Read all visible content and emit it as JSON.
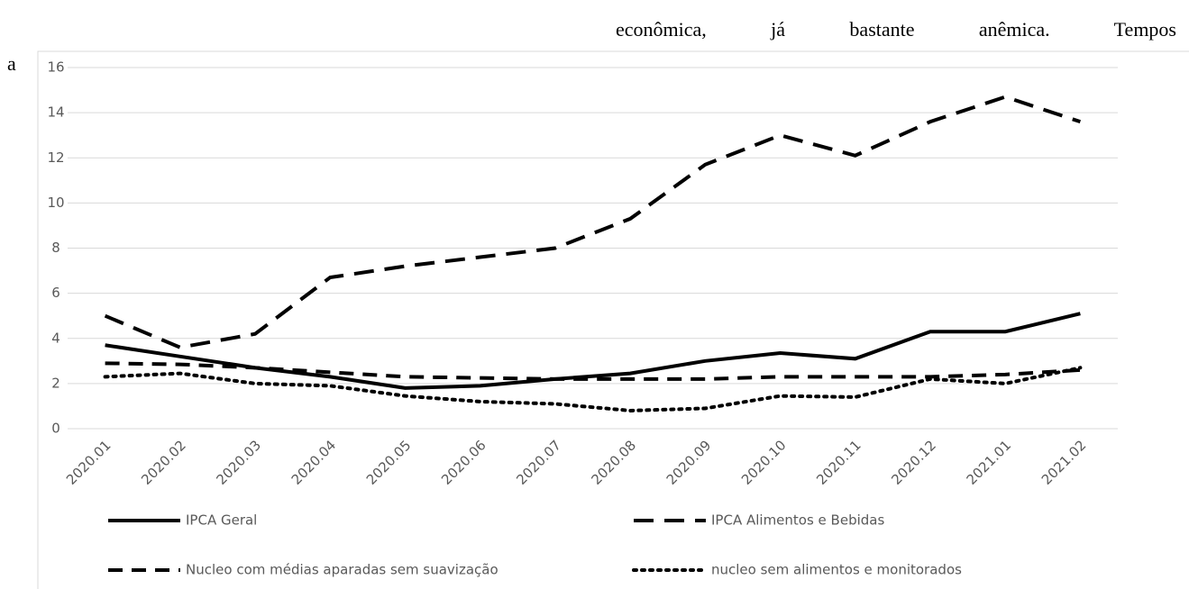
{
  "document": {
    "top_line": "econômica, já bastante anêmica. Tempos",
    "left_fragment": "a"
  },
  "chart_data": {
    "type": "line",
    "categories": [
      "2020.01",
      "2020.02",
      "2020.03",
      "2020.04",
      "2020.05",
      "2020.06",
      "2020.07",
      "2020.08",
      "2020.09",
      "2020.10",
      "2020.11",
      "2020.12",
      "2021.01",
      "2021.02"
    ],
    "series": [
      {
        "name": "IPCA Geral",
        "color": "#000000",
        "dash": "solid",
        "values": [
          3.7,
          3.2,
          2.7,
          2.3,
          1.8,
          1.9,
          2.2,
          2.45,
          3.0,
          3.35,
          3.1,
          4.3,
          4.3,
          5.1
        ]
      },
      {
        "name": "IPCA Alimentos e Bebidas",
        "color": "#000000",
        "dash": "long-dash",
        "values": [
          5.0,
          3.6,
          4.2,
          6.7,
          7.2,
          7.6,
          8.0,
          9.3,
          11.7,
          13.0,
          12.1,
          13.6,
          14.7,
          13.6
        ]
      },
      {
        "name": "Nucleo com médias aparadas sem suavização",
        "color": "#000000",
        "dash": "dash",
        "values": [
          2.9,
          2.85,
          2.7,
          2.5,
          2.3,
          2.25,
          2.2,
          2.2,
          2.2,
          2.3,
          2.3,
          2.3,
          2.4,
          2.6
        ]
      },
      {
        "name": "nucleo sem alimentos e monitorados",
        "color": "#000000",
        "dash": "dot",
        "values": [
          2.3,
          2.45,
          2.0,
          1.9,
          1.45,
          1.2,
          1.1,
          0.8,
          0.9,
          1.45,
          1.4,
          2.2,
          2.0,
          2.7
        ]
      }
    ],
    "ylim": [
      0,
      16
    ],
    "yticks": [
      0,
      2,
      4,
      6,
      8,
      10,
      12,
      14,
      16
    ],
    "grid": true,
    "legend": "bottom"
  }
}
